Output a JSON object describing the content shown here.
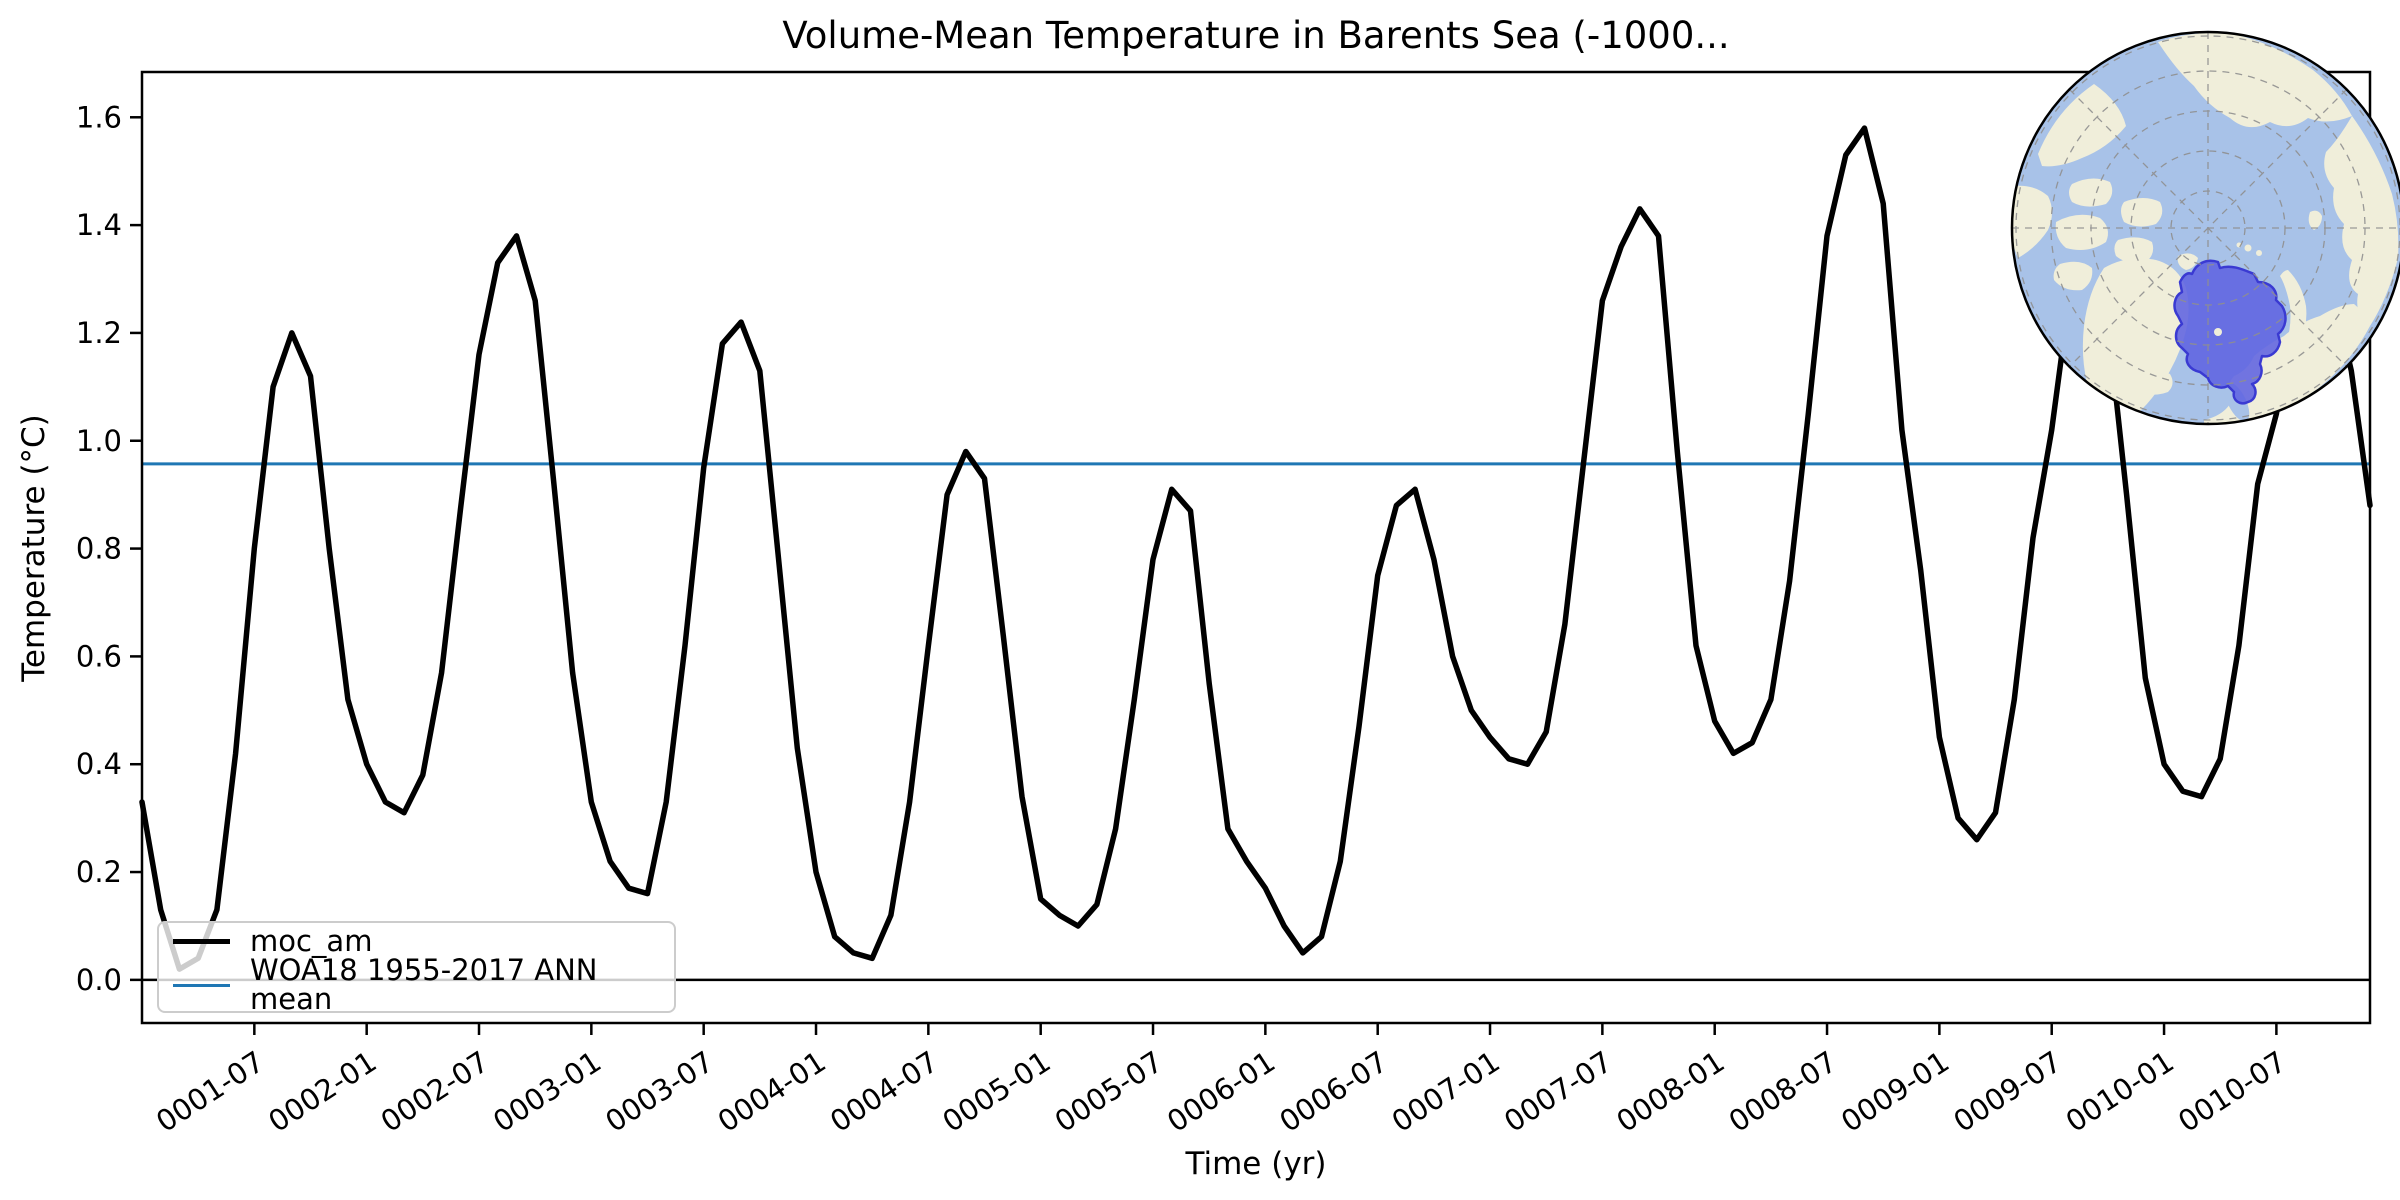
{
  "title": "Volume-Mean Temperature in Barents Sea (-1000...",
  "axes": {
    "xlabel": "Time (yr)",
    "ylabel": "Temperature (°C)"
  },
  "legend": {
    "position": "lower left",
    "entries": [
      {
        "label": "moc_am",
        "color": "#000000",
        "line_width": 5.5
      },
      {
        "label": "WOA18 1955-2017 ANN mean",
        "color": "#1f77b4",
        "line_width": 3
      }
    ]
  },
  "chart_data": {
    "type": "line",
    "title": "Volume-Mean Temperature in Barents Sea (-1000...",
    "xlabel": "Time (yr)",
    "ylabel": "Temperature (°C)",
    "x_start": "0001-01",
    "x_end": "0010-12",
    "sampling": "monthly",
    "n_points": 120,
    "grid": false,
    "legend_position": "lower left",
    "ylim": [
      -0.08,
      1.684
    ],
    "y_ticks": [
      0.0,
      0.2,
      0.4,
      0.6,
      0.8,
      1.0,
      1.2,
      1.4,
      1.6
    ],
    "y_tick_labels": [
      "0.0",
      "0.2",
      "0.4",
      "0.6",
      "0.8",
      "1.0",
      "1.2",
      "1.4",
      "1.6"
    ],
    "x_tick_month_index": [
      6,
      12,
      18,
      24,
      30,
      36,
      42,
      48,
      54,
      60,
      66,
      72,
      78,
      84,
      90,
      96,
      102,
      108,
      114
    ],
    "x_tick_labels": [
      "0001-07",
      "0002-01",
      "0002-07",
      "0003-01",
      "0003-07",
      "0004-01",
      "0004-07",
      "0005-01",
      "0005-07",
      "0006-01",
      "0006-07",
      "0007-01",
      "0007-07",
      "0008-01",
      "0008-07",
      "0009-01",
      "0009-07",
      "0010-01",
      "0010-07"
    ],
    "series": [
      {
        "name": "moc_am",
        "type": "line",
        "color": "#000000",
        "line_width": 5.5,
        "values": [
          0.33,
          0.13,
          0.02,
          0.04,
          0.13,
          0.42,
          0.8,
          1.1,
          1.2,
          1.12,
          0.8,
          0.52,
          0.4,
          0.33,
          0.31,
          0.38,
          0.57,
          0.87,
          1.16,
          1.33,
          1.38,
          1.26,
          0.92,
          0.57,
          0.33,
          0.22,
          0.17,
          0.16,
          0.33,
          0.62,
          0.95,
          1.18,
          1.22,
          1.13,
          0.78,
          0.43,
          0.2,
          0.08,
          0.05,
          0.04,
          0.12,
          0.33,
          0.62,
          0.9,
          0.98,
          0.93,
          0.64,
          0.34,
          0.15,
          0.12,
          0.1,
          0.14,
          0.28,
          0.52,
          0.78,
          0.91,
          0.87,
          0.55,
          0.28,
          0.22,
          0.17,
          0.1,
          0.05,
          0.08,
          0.22,
          0.47,
          0.75,
          0.88,
          0.91,
          0.78,
          0.6,
          0.5,
          0.45,
          0.41,
          0.4,
          0.46,
          0.66,
          0.96,
          1.26,
          1.36,
          1.43,
          1.38,
          0.98,
          0.62,
          0.48,
          0.42,
          0.44,
          0.52,
          0.74,
          1.05,
          1.38,
          1.53,
          1.58,
          1.44,
          1.02,
          0.76,
          0.45,
          0.3,
          0.26,
          0.31,
          0.52,
          0.82,
          1.02,
          1.28,
          1.38,
          1.22,
          0.9,
          0.56,
          0.4,
          0.35,
          0.34,
          0.41,
          0.62,
          0.92,
          1.05,
          1.25,
          1.33,
          1.28,
          1.13,
          0.88
        ]
      },
      {
        "name": "WOA18 1955-2017 ANN mean",
        "type": "hline",
        "color": "#1f77b4",
        "line_width": 3,
        "value": 0.957
      }
    ],
    "reference_lines": [
      {
        "name": "zero-line",
        "type": "hline",
        "color": "#000000",
        "line_width": 2.5,
        "value": 0.0
      }
    ]
  },
  "map_inset": {
    "description": "North polar stereographic globe inset",
    "highlight_region": "Barents Sea",
    "colors": {
      "ocean": "#a8c2e8",
      "land": "#f0eeda",
      "region_fill": "#5f63e0",
      "region_edge": "#3a3ad2",
      "graticule": "#8f8f8f",
      "border": "#000000"
    }
  }
}
